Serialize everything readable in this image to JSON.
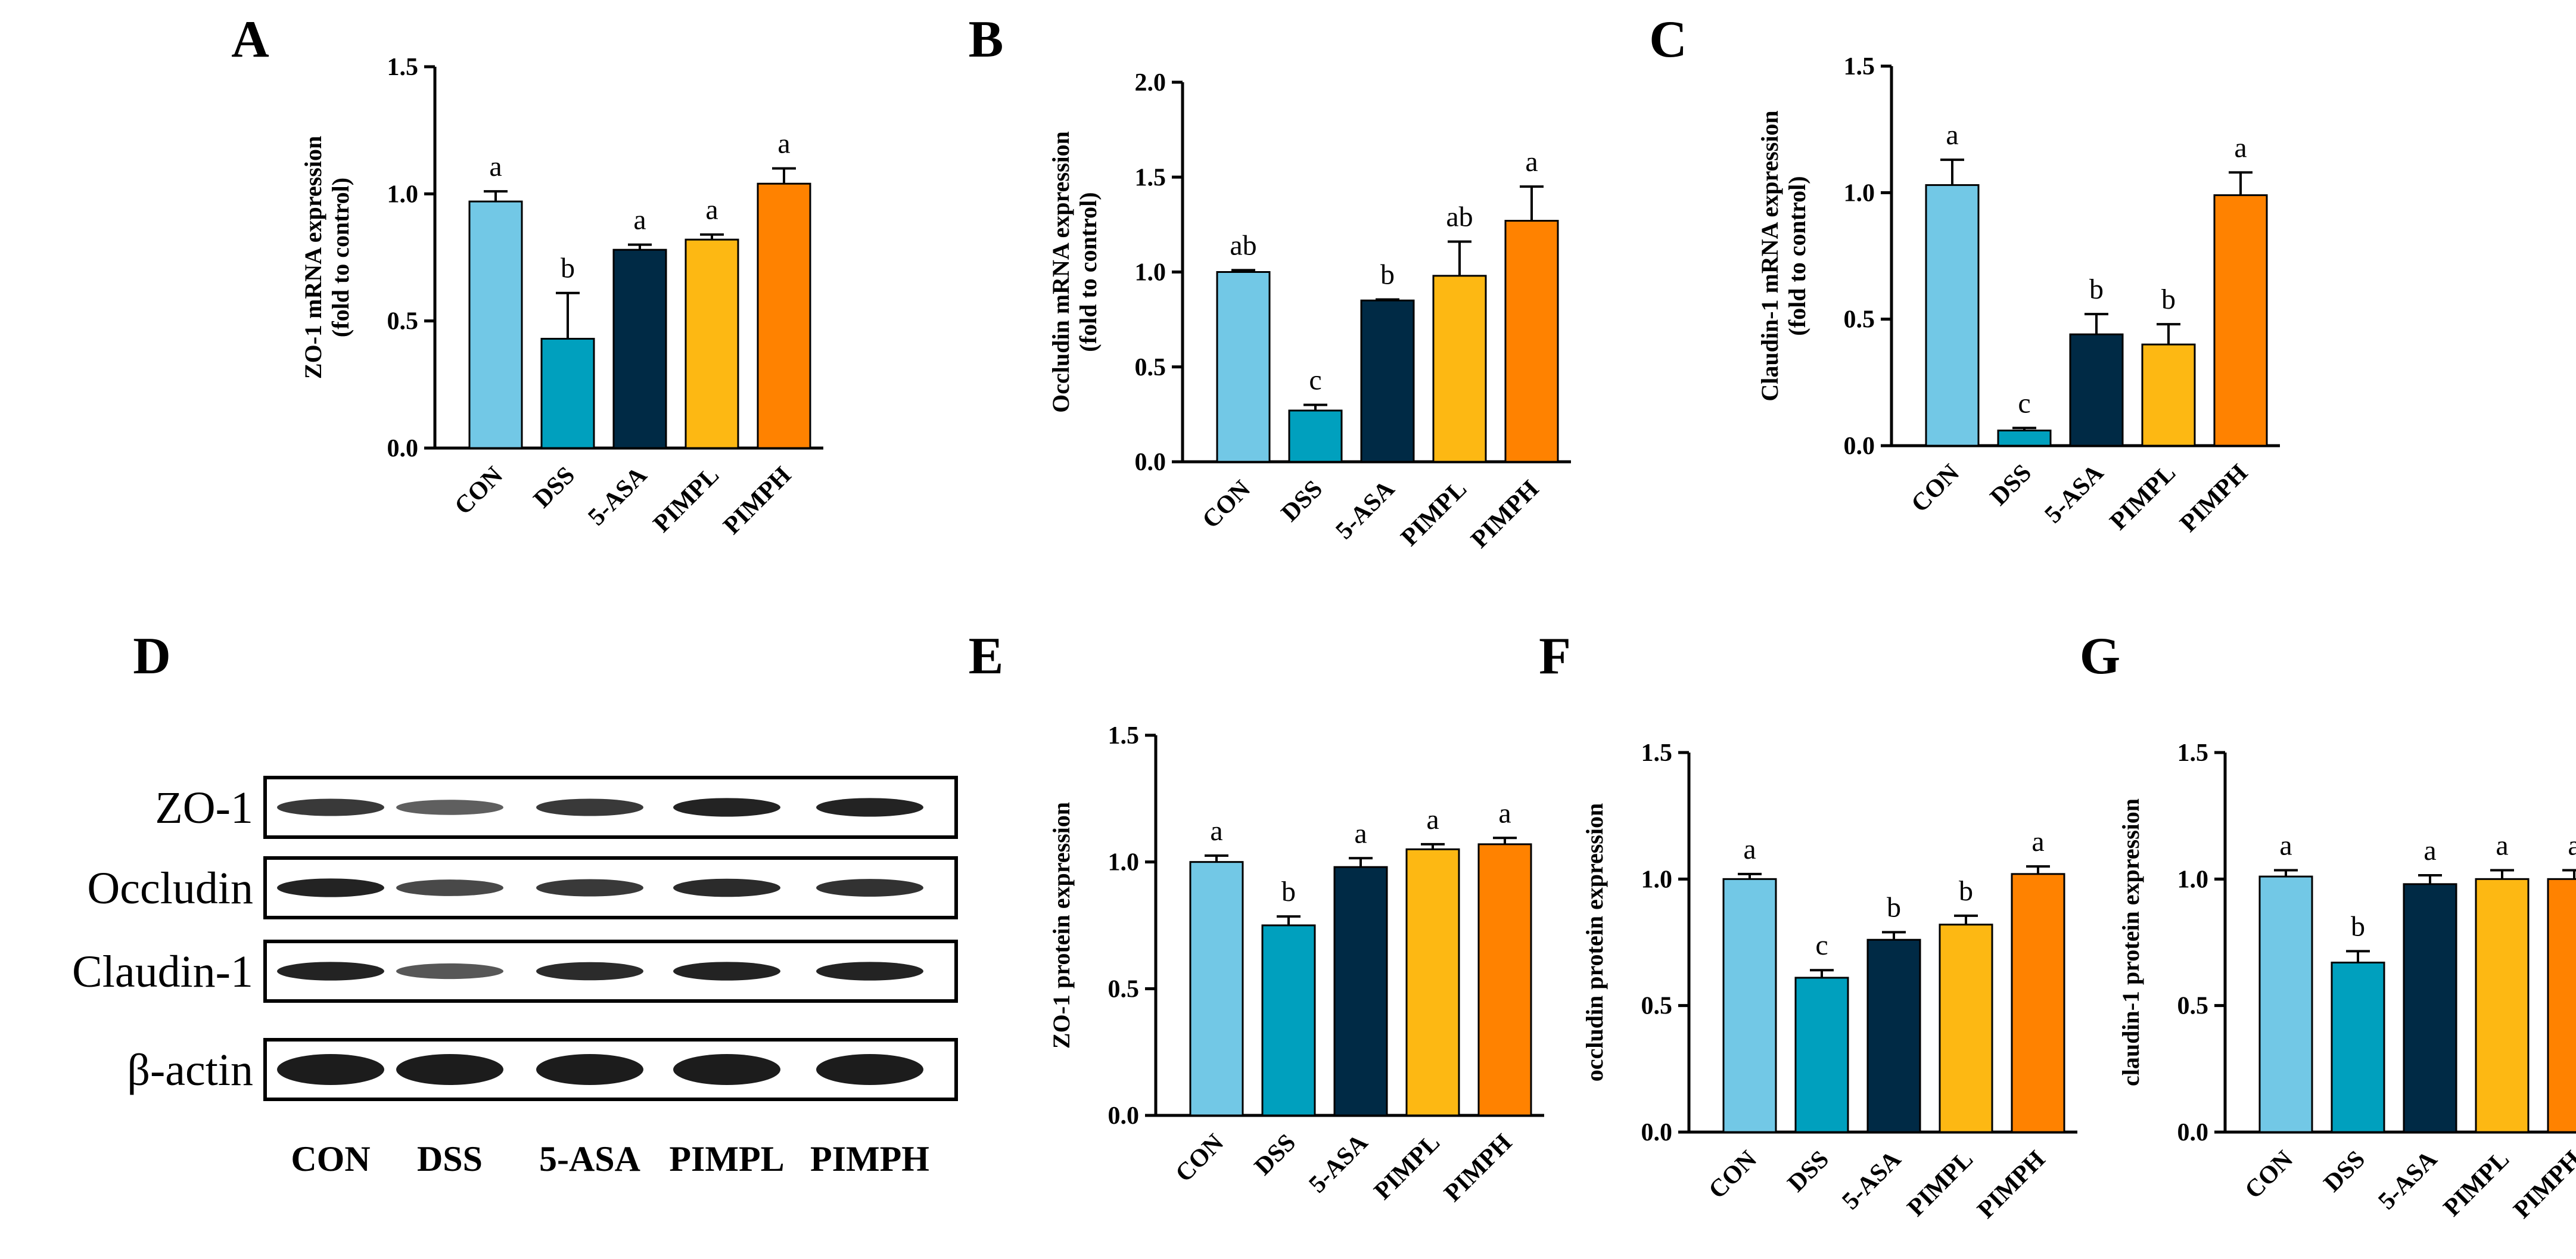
{
  "colors": {
    "CON": "#72C8E6",
    "DSS": "#00A0BE",
    "5-ASA": "#002A45",
    "PIMPL": "#FDB813",
    "PIMPH": "#FF8200",
    "axis": "#000000",
    "band": "#1c1c1c"
  },
  "chart_data": [
    {
      "panel": "A",
      "type": "bar",
      "categories": [
        "CON",
        "DSS",
        "5-ASA",
        "PIMPL",
        "PIMPH"
      ],
      "values": [
        0.97,
        0.43,
        0.78,
        0.82,
        1.04
      ],
      "errors": [
        0.04,
        0.18,
        0.02,
        0.02,
        0.06
      ],
      "letters": [
        "a",
        "b",
        "a",
        "a",
        "a"
      ],
      "ylabel": [
        "ZO-1 mRNA expression",
        "(fold to control)"
      ],
      "ylim": [
        0,
        1.5
      ],
      "yticks": [
        "0.0",
        "0.5",
        "1.0",
        "1.5"
      ]
    },
    {
      "panel": "B",
      "type": "bar",
      "categories": [
        "CON",
        "DSS",
        "5-ASA",
        "PIMPL",
        "PIMPH"
      ],
      "values": [
        1.0,
        0.27,
        0.85,
        0.98,
        1.27
      ],
      "errors": [
        0.01,
        0.03,
        0.005,
        0.18,
        0.18
      ],
      "letters": [
        "ab",
        "c",
        "b",
        "ab",
        "a"
      ],
      "ylabel": [
        "Occludin mRNA expression",
        "(fold to control)"
      ],
      "ylim": [
        0,
        2.0
      ],
      "yticks": [
        "0.0",
        "0.5",
        "1.0",
        "1.5",
        "2.0"
      ]
    },
    {
      "panel": "C",
      "type": "bar",
      "categories": [
        "CON",
        "DSS",
        "5-ASA",
        "PIMPL",
        "PIMPH"
      ],
      "values": [
        1.03,
        0.06,
        0.44,
        0.4,
        0.99
      ],
      "errors": [
        0.1,
        0.01,
        0.08,
        0.08,
        0.09
      ],
      "letters": [
        "a",
        "c",
        "b",
        "b",
        "a"
      ],
      "ylabel": [
        "Claudin-1 mRNA expression",
        "(fold to control)"
      ],
      "ylim": [
        0,
        1.5
      ],
      "yticks": [
        "0.0",
        "0.5",
        "1.0",
        "1.5"
      ]
    },
    {
      "panel": "E",
      "type": "bar",
      "categories": [
        "CON",
        "DSS",
        "5-ASA",
        "PIMPL",
        "PIMPH"
      ],
      "values": [
        1.0,
        0.75,
        0.98,
        1.05,
        1.07
      ],
      "errors": [
        0.025,
        0.035,
        0.035,
        0.02,
        0.025
      ],
      "letters": [
        "a",
        "b",
        "a",
        "a",
        "a"
      ],
      "ylabel": [
        "ZO-1 protein expression"
      ],
      "ylim": [
        0,
        1.5
      ],
      "yticks": [
        "0.0",
        "0.5",
        "1.0",
        "1.5"
      ]
    },
    {
      "panel": "F",
      "type": "bar",
      "categories": [
        "CON",
        "DSS",
        "5-ASA",
        "PIMPL",
        "PIMPH"
      ],
      "values": [
        1.0,
        0.61,
        0.76,
        0.82,
        1.02
      ],
      "errors": [
        0.02,
        0.03,
        0.03,
        0.035,
        0.03
      ],
      "letters": [
        "a",
        "c",
        "b",
        "b",
        "a"
      ],
      "ylabel": [
        "occludin protein expression"
      ],
      "ylim": [
        0,
        1.5
      ],
      "yticks": [
        "0.0",
        "0.5",
        "1.0",
        "1.5"
      ]
    },
    {
      "panel": "G",
      "type": "bar",
      "categories": [
        "CON",
        "DSS",
        "5-ASA",
        "PIMPL",
        "PIMPH"
      ],
      "values": [
        1.01,
        0.67,
        0.98,
        1.0,
        1.0
      ],
      "errors": [
        0.025,
        0.045,
        0.035,
        0.035,
        0.035
      ],
      "letters": [
        "a",
        "b",
        "a",
        "a",
        "a"
      ],
      "ylabel": [
        "claudin-1 protein expression"
      ],
      "ylim": [
        0,
        1.5
      ],
      "yticks": [
        "0.0",
        "0.5",
        "1.0",
        "1.5"
      ]
    }
  ],
  "blot": {
    "panel": "D",
    "rows": [
      "ZO-1",
      "Occludin",
      "Claudin-1",
      "β-actin"
    ],
    "lanes": [
      "CON",
      "DSS",
      "5-ASA",
      "PIMPL",
      "PIMPH"
    ],
    "intensity": [
      [
        0.8,
        0.55,
        0.8,
        0.95,
        0.95
      ],
      [
        0.95,
        0.7,
        0.8,
        0.9,
        0.85
      ],
      [
        0.95,
        0.6,
        0.9,
        0.95,
        0.95
      ],
      [
        1.0,
        1.0,
        1.0,
        1.0,
        1.0
      ]
    ]
  }
}
